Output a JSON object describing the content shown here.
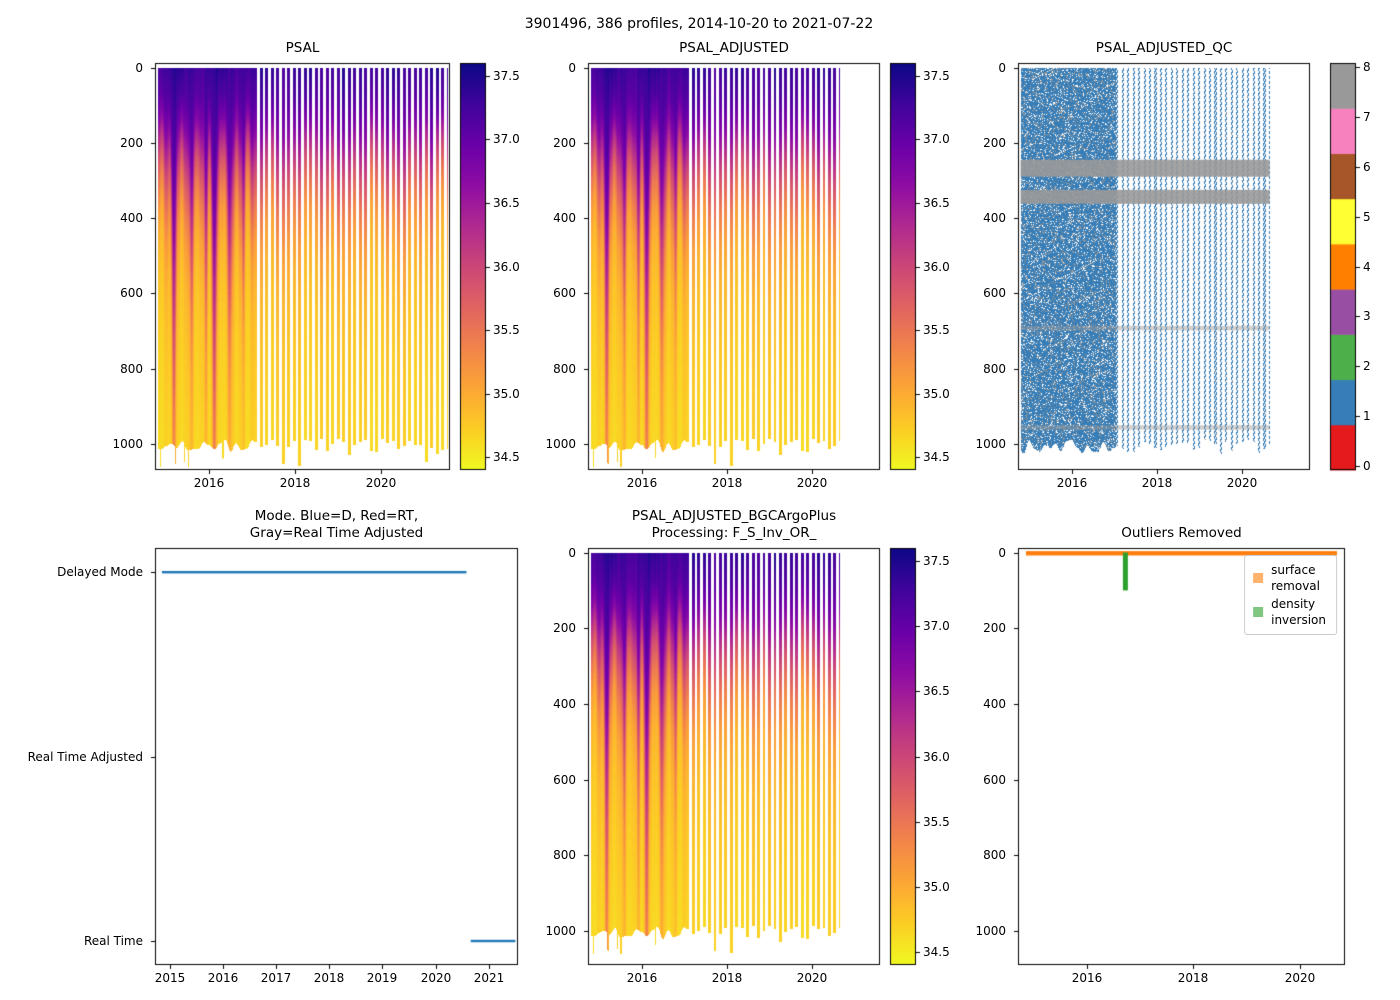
{
  "suptitle": "3901496, 386 profiles, 2014-10-20 to 2021-07-22",
  "platform_id": "3901496",
  "n_profiles": 386,
  "date_range": {
    "start": "2014-10-20",
    "end": "2021-07-22"
  },
  "colors": {
    "profile_line_blue": "#1f77b4",
    "surface_removal_orange": "#ff7f0e",
    "density_inversion_green": "#2ca02c",
    "qc_palette": [
      "#e41a1c",
      "#377eb8",
      "#4daf4a",
      "#984ea3",
      "#ff7f00",
      "#ffff33",
      "#a65628",
      "#f781bf",
      "#999999"
    ],
    "plasma_stops": [
      "#0d0887",
      "#41049d",
      "#6a00a8",
      "#8f0da4",
      "#b12a90",
      "#cc4778",
      "#e16462",
      "#f2844b",
      "#fca636",
      "#fcce25",
      "#f0f921"
    ]
  },
  "chart_data": [
    {
      "id": "psal",
      "type": "heatmap",
      "title": "PSAL",
      "x": {
        "min": 2014.74,
        "max": 2021.6,
        "ticks": [
          "2016",
          "2018",
          "2020"
        ]
      },
      "y": {
        "min": -12,
        "max": 1069,
        "ticks": [
          "0",
          "200",
          "400",
          "600",
          "800",
          "1000"
        ],
        "unit": "dbar"
      },
      "data": {
        "start": 2014.8,
        "end": 2021.55,
        "continuous_until": 2017.05,
        "profile_period_yr": 0.128,
        "profile_width_yr": 0.068,
        "depth_top": 0,
        "depth_bottom_mean": 995
      },
      "colorbar": {
        "cmap": "plasma_r",
        "vmin": 34.4,
        "vmax": 37.6,
        "ticks": [
          "34.5",
          "35.0",
          "35.5",
          "36.0",
          "36.5",
          "37.0",
          "37.5"
        ]
      }
    },
    {
      "id": "psal_adjusted",
      "type": "heatmap",
      "title": "PSAL_ADJUSTED",
      "x": {
        "min": 2014.74,
        "max": 2021.6,
        "ticks": [
          "2016",
          "2018",
          "2020"
        ]
      },
      "y": {
        "min": -12,
        "max": 1069,
        "ticks": [
          "0",
          "200",
          "400",
          "600",
          "800",
          "1000"
        ],
        "unit": "dbar"
      },
      "data": {
        "start": 2014.8,
        "end": 2020.65,
        "continuous_until": 2017.05,
        "profile_period_yr": 0.128,
        "profile_width_yr": 0.068,
        "depth_top": 0,
        "depth_bottom_mean": 995
      },
      "colorbar": {
        "cmap": "plasma_r",
        "vmin": 34.4,
        "vmax": 37.6,
        "ticks": [
          "34.5",
          "35.0",
          "35.5",
          "36.0",
          "36.5",
          "37.0",
          "37.5"
        ]
      }
    },
    {
      "id": "psal_adjusted_qc",
      "type": "qc_heatmap",
      "title": "PSAL_ADJUSTED_QC",
      "x": {
        "min": 2014.74,
        "max": 2021.6,
        "ticks": [
          "2016",
          "2018",
          "2020"
        ]
      },
      "y": {
        "min": -12,
        "max": 1069,
        "ticks": [
          "0",
          "200",
          "400",
          "600",
          "800",
          "1000"
        ],
        "unit": "dbar"
      },
      "data": {
        "start": 2014.8,
        "end": 2020.65,
        "continuous_until": 2017.05,
        "profile_period_yr": 0.128,
        "profile_width_yr": 0.05,
        "dominant_flag": 1,
        "gray_flag": 8,
        "gray_bands_depth": [
          [
            245,
            290
          ],
          [
            325,
            362
          ]
        ],
        "faint_gray_bands_depth": [
          [
            686,
            698
          ],
          [
            950,
            962
          ]
        ]
      },
      "colorbar": {
        "cmap": "qc_palette",
        "vmin": 0,
        "vmax": 8,
        "ticks": [
          "0",
          "1",
          "2",
          "3",
          "4",
          "5",
          "6",
          "7",
          "8"
        ]
      }
    },
    {
      "id": "mode",
      "type": "category_lines",
      "title_lines": [
        "Mode. Blue=D, Red=RT,",
        "Gray=Real Time Adjusted"
      ],
      "x": {
        "min": 2014.72,
        "max": 2021.55,
        "ticks": [
          "2015",
          "2016",
          "2017",
          "2018",
          "2019",
          "2020",
          "2021"
        ]
      },
      "categories": [
        "Delayed Mode",
        "Real Time Adjusted",
        "Real Time"
      ],
      "segments": [
        {
          "category": "Delayed Mode",
          "start": 2014.85,
          "end": 2020.58
        },
        {
          "category": "Real Time",
          "start": 2020.66,
          "end": 2021.5
        }
      ]
    },
    {
      "id": "psal_adjusted_bgc",
      "type": "heatmap",
      "title_lines": [
        "PSAL_ADJUSTED_BGCArgoPlus",
        "Processing: F_S_Inv_OR_"
      ],
      "x": {
        "min": 2014.74,
        "max": 2021.6,
        "ticks": [
          "2016",
          "2018",
          "2020"
        ]
      },
      "y": {
        "min": -12,
        "max": 1090,
        "ticks": [
          "0",
          "200",
          "400",
          "600",
          "800",
          "1000"
        ],
        "unit": "dbar"
      },
      "data": {
        "start": 2014.8,
        "end": 2020.65,
        "continuous_until": 2017.05,
        "profile_period_yr": 0.128,
        "profile_width_yr": 0.068,
        "depth_top": 0,
        "depth_bottom_mean": 995
      },
      "colorbar": {
        "cmap": "plasma_r",
        "vmin": 34.4,
        "vmax": 37.6,
        "ticks": [
          "34.5",
          "35.0",
          "35.5",
          "36.0",
          "36.5",
          "37.0",
          "37.5"
        ]
      }
    },
    {
      "id": "outliers",
      "type": "outlier_plot",
      "title": "Outliers Removed",
      "x": {
        "min": 2014.7,
        "max": 2020.85,
        "ticks": [
          "2016",
          "2018",
          "2020"
        ]
      },
      "y": {
        "min": -12,
        "max": 1090,
        "ticks": [
          "0",
          "200",
          "400",
          "600",
          "800",
          "1000"
        ],
        "unit": "dbar"
      },
      "legend": [
        {
          "label": "surface removal",
          "color": "#ff7f0e"
        },
        {
          "label": "density inversion",
          "color": "#2ca02c"
        }
      ],
      "series": [
        {
          "name": "surface removal",
          "kind": "horizontal_line",
          "depth": 2,
          "start": 2014.85,
          "end": 2020.7
        },
        {
          "name": "density inversion",
          "kind": "vertical_bar",
          "time": 2016.72,
          "depth_start": 0,
          "depth_end": 100
        }
      ]
    }
  ]
}
